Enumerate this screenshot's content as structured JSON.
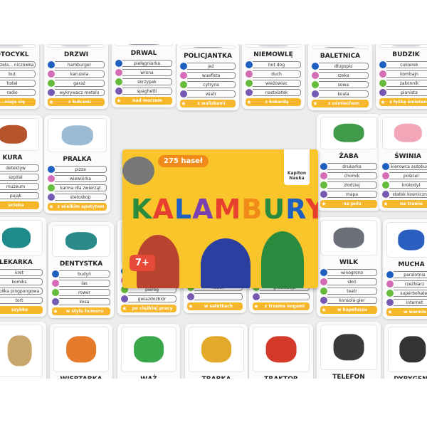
{
  "word_colors": [
    "#1f5fbf",
    "#d46db6",
    "#67bb3c",
    "#7659b0"
  ],
  "bar_color": "#f6b82a",
  "cards": [
    {
      "title": "MOTOCYKL",
      "words": [
        "karuzela... niczówka",
        "but",
        "hotel",
        "radio"
      ],
      "bar": "...niaja się",
      "image": "motorcycle"
    },
    {
      "title": "DRZWI",
      "words": [
        "hamburger",
        "karuzela",
        "garaż",
        "wykrywacz metalu"
      ],
      "bar": "z kołcami",
      "image": "door"
    },
    {
      "title": "DRWAL",
      "words": [
        "pielęgniarka",
        "wrona",
        "skrzypek",
        "spaghetti"
      ],
      "bar": "nad morzem",
      "image": "lumberjack"
    },
    {
      "title": "POLICJANTKA",
      "words": [
        "jeż",
        "wuefista",
        "cytryna",
        "wiatr"
      ],
      "bar": "z walizkami",
      "image": "policewoman"
    },
    {
      "title": "NIEMOWLĘ",
      "words": [
        "hot dog",
        "duch",
        "wieżowiec",
        "nastolatek"
      ],
      "bar": "z kokardą",
      "image": "baby"
    },
    {
      "title": "BALETNICA",
      "words": [
        "długopis",
        "rzeka",
        "sowa",
        "koala"
      ],
      "bar": "z uśmiechem",
      "image": "ballerina"
    },
    {
      "title": "BUDZIK",
      "words": [
        "cukierek",
        "kombajn",
        "zakonnik",
        "pianista"
      ],
      "bar": "z łyżką śmietany",
      "image": "alarm-clock"
    },
    {
      "title": "KURA",
      "words": [
        "detektyw",
        "szpital",
        "muzeum",
        "pająk"
      ],
      "bar": "ucieka",
      "image": "hen"
    },
    {
      "title": "PRALKA",
      "words": [
        "pizza",
        "wiewiórka",
        "karma dla zwierząt",
        "stetoskop"
      ],
      "bar": "z wielkim apetytem",
      "image": "washing-machine"
    },
    {
      "title": "ŻABA",
      "words": [
        "drukarka",
        "chomik",
        "złodziej",
        "mapa"
      ],
      "bar": "na polu",
      "image": "frog"
    },
    {
      "title": "ŚWINIA",
      "words": [
        "kierowca autobusu",
        "pościel",
        "krokodyl",
        "statek kosmiczny"
      ],
      "bar": "na trawie",
      "image": "pig"
    },
    {
      "title": "LEKARKA",
      "words": [
        "kret",
        "komiks",
        "piłka pingpongowa",
        "tort"
      ],
      "bar": "szybko",
      "image": "doctor"
    },
    {
      "title": "DENTYSTKA",
      "words": [
        "budyń",
        "las",
        "rower",
        "kosa"
      ],
      "bar": "w stylu humoru",
      "image": "dentist"
    },
    {
      "title": "",
      "words": [
        "",
        "pasażer",
        "pieróg",
        "gwiazdozbiór"
      ],
      "bar": "po ciężkiej pracy",
      "image": ""
    },
    {
      "title": "",
      "words": [
        "stadion",
        "rakieta",
        "robot",
        ""
      ],
      "bar": "w sałatkach",
      "image": ""
    },
    {
      "title": "",
      "words": [
        "",
        "kalosz",
        "grawitacja",
        ""
      ],
      "bar": "z trzema nogami",
      "image": ""
    },
    {
      "title": "WILK",
      "words": [
        "winogrono",
        "słoń",
        "teatr",
        "konsola gier"
      ],
      "bar": "w kapeluszu",
      "image": "wolf"
    },
    {
      "title": "MUCHA",
      "words": [
        "paralotnia",
        "rzeźbiarz",
        "superbohater",
        "internet"
      ],
      "bar": "w wannie",
      "image": "fly"
    },
    {
      "title": "",
      "words": [],
      "bar": "",
      "image": "lion"
    },
    {
      "title": "WIERTARKA",
      "words": [],
      "bar": "",
      "image": "drill"
    },
    {
      "title": "WĄŻ",
      "words": [],
      "bar": "",
      "image": "snake"
    },
    {
      "title": "TRĄBKA",
      "words": [],
      "bar": "",
      "image": "trumpet"
    },
    {
      "title": "TRAKTOR",
      "words": [],
      "bar": "",
      "image": "tractor"
    },
    {
      "title": "TELEFON",
      "words": [],
      "bar": "",
      "image": "phone"
    },
    {
      "title": "DYRYGENT",
      "words": [],
      "bar": "",
      "image": "conductor"
    }
  ],
  "box": {
    "count_badge": "275 haseł",
    "logo": "Kapiton Nauka",
    "title": "KALAMBURY",
    "title_colors": [
      "#2a8a3e",
      "#e8402e",
      "#1f5fbf",
      "#7a3fb0",
      "#e8402e",
      "#f28a1a",
      "#2a8a3e",
      "#1f5fbf",
      "#e8402e"
    ],
    "age": "7+",
    "color": "#f9c52a"
  }
}
